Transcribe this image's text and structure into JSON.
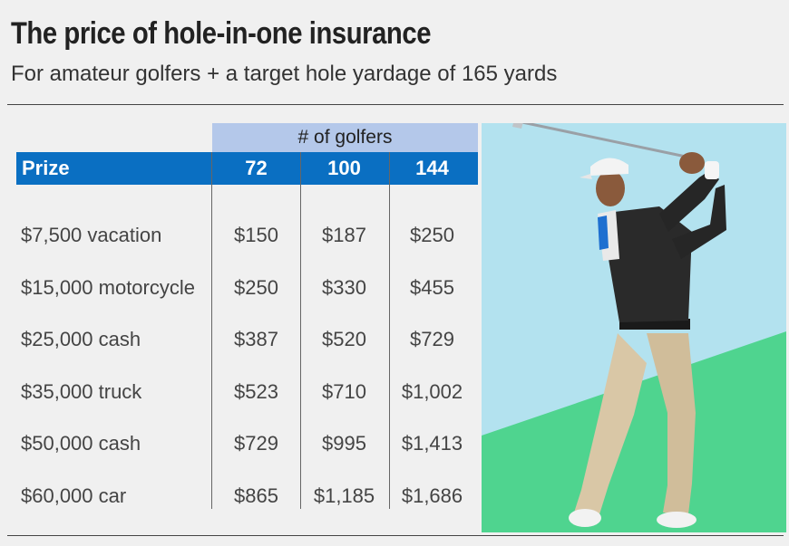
{
  "title": "The price of hole-in-one insurance",
  "subtitle": "For amateur golfers + a target hole yardage of 165 yards",
  "colors": {
    "header_blue": "#0a6fc2",
    "group_header": "#b4c8ea",
    "sky": "#b3e2ef",
    "grass": "#4fd48f"
  },
  "chart_data": {
    "type": "table",
    "group_header": "# of golfers",
    "columns": [
      "Prize",
      "72",
      "100",
      "144"
    ],
    "rows": [
      {
        "prize": "$7,500 vacation",
        "values": [
          "$150",
          "$187",
          "$250"
        ]
      },
      {
        "prize": "$15,000 motorcycle",
        "values": [
          "$250",
          "$330",
          "$455"
        ]
      },
      {
        "prize": "$25,000 cash",
        "values": [
          "$387",
          "$520",
          "$729"
        ]
      },
      {
        "prize": "$35,000 truck",
        "values": [
          "$523",
          "$710",
          "$1,002"
        ]
      },
      {
        "prize": "$50,000 cash",
        "values": [
          "$729",
          "$995",
          "$1,413"
        ]
      },
      {
        "prize": "$60,000 car",
        "values": [
          "$865",
          "$1,185",
          "$1,686"
        ]
      }
    ]
  }
}
